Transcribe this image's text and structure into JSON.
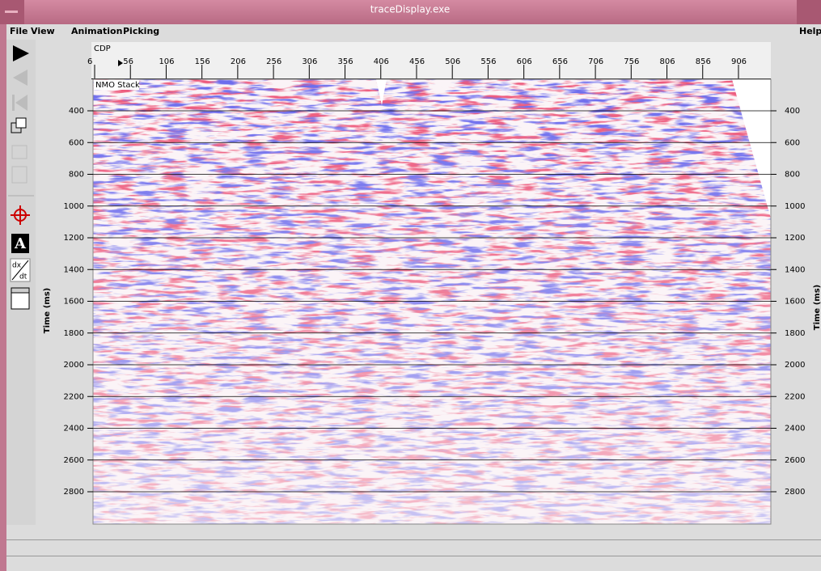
{
  "window": {
    "title": "traceDisplay.exe"
  },
  "menu": {
    "items": [
      "File",
      "View",
      "Animation",
      "Picking"
    ],
    "help": "Help"
  },
  "toolbar": {
    "text_tool": "A",
    "derivative": [
      "dx",
      "dt"
    ]
  },
  "plot": {
    "x_axis_label": "CDP",
    "x_ticks": [
      6,
      56,
      106,
      156,
      206,
      256,
      306,
      356,
      406,
      456,
      506,
      556,
      606,
      656,
      706,
      756,
      806,
      856,
      906
    ],
    "y_axis_label": "Time (ms)",
    "y_ticks": [
      400,
      600,
      800,
      1000,
      1200,
      1400,
      1600,
      1800,
      2000,
      2200,
      2400,
      2600,
      2800
    ],
    "panel_label": "NMO Stack"
  }
}
